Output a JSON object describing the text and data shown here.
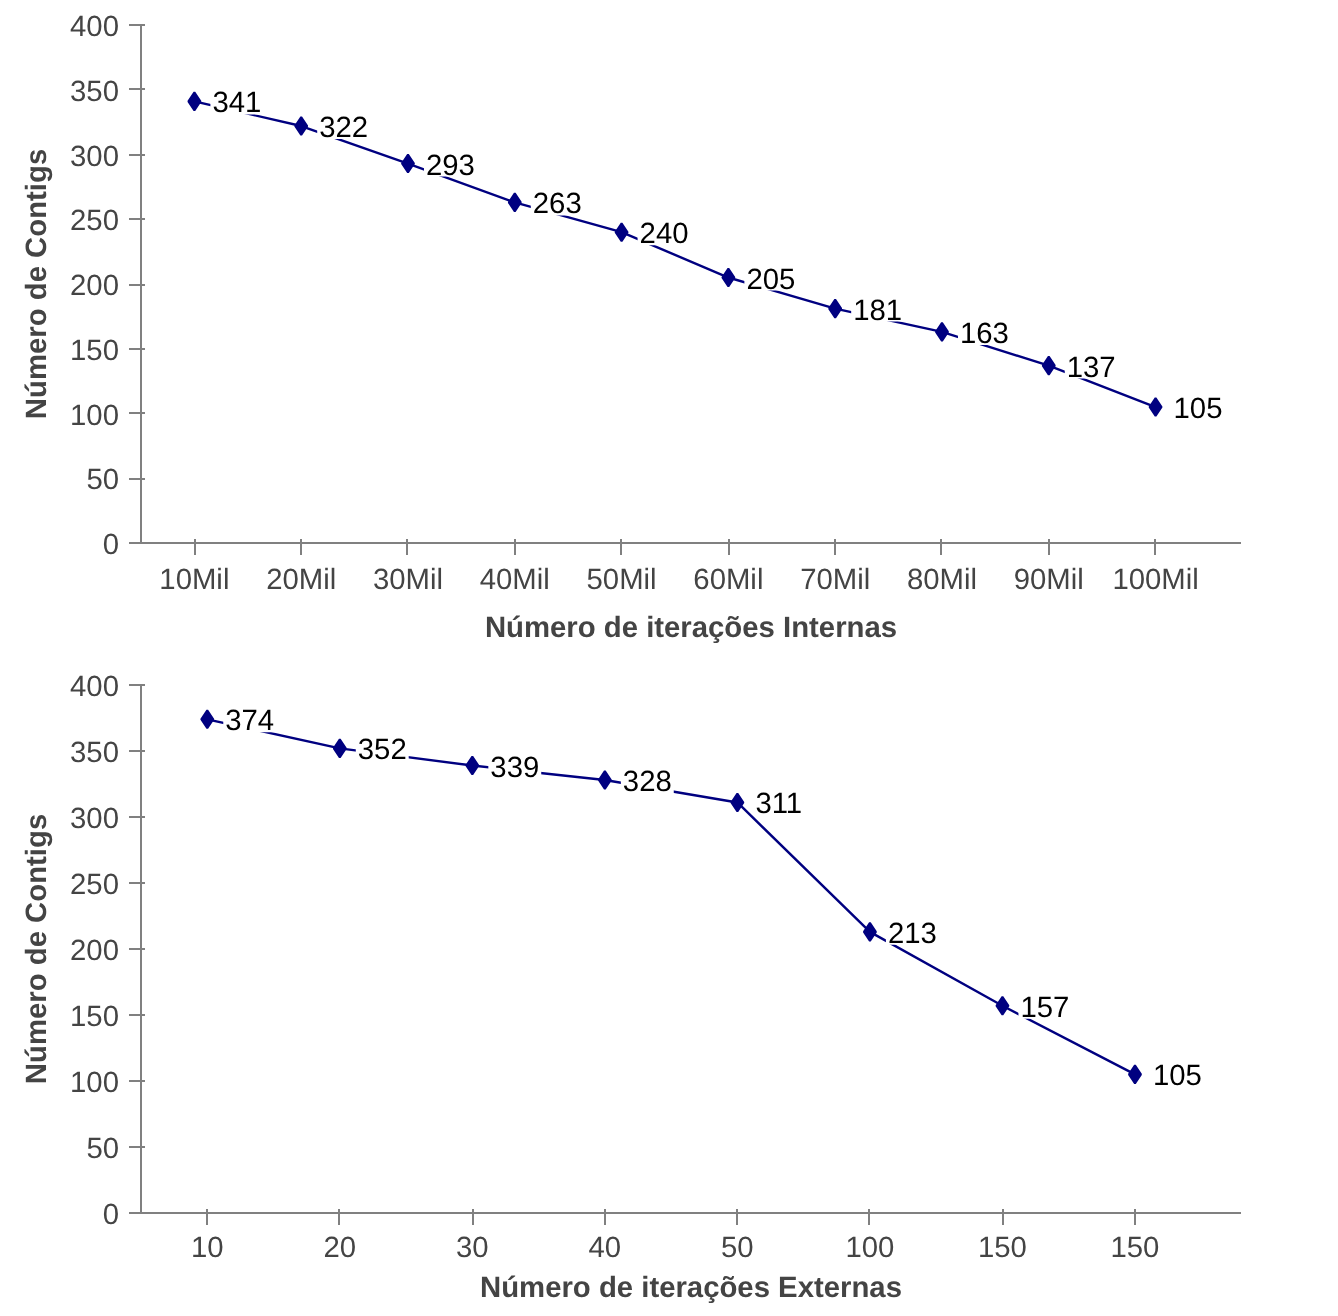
{
  "chart_data": [
    {
      "type": "line",
      "categories": [
        "10Mil",
        "20Mil",
        "30Mil",
        "40Mil",
        "50Mil",
        "60Mil",
        "70Mil",
        "80Mil",
        "90Mil",
        "100Mil"
      ],
      "series": [
        {
          "color": "#000080",
          "values": [
            341,
            322,
            293,
            263,
            240,
            205,
            181,
            163,
            137,
            105
          ]
        }
      ],
      "xlabel": "Número de iterações Internas",
      "ylabel": "Número de Contigs",
      "ylim": [
        0,
        400
      ],
      "yticks": [
        0,
        50,
        100,
        150,
        200,
        250,
        300,
        350,
        400
      ],
      "data_labels": true,
      "marker": "diamond",
      "line_style": "solid"
    },
    {
      "type": "line",
      "categories": [
        "10",
        "20",
        "30",
        "40",
        "50",
        "100",
        "150",
        "150"
      ],
      "series": [
        {
          "color": "#000080",
          "values": [
            374,
            352,
            339,
            328,
            311,
            213,
            157,
            105
          ]
        }
      ],
      "xlabel": "Número de iterações Externas",
      "ylabel": "Número de Contigs",
      "ylim": [
        0,
        400
      ],
      "yticks": [
        0,
        50,
        100,
        150,
        200,
        250,
        300,
        350,
        400
      ],
      "data_labels": true,
      "marker": "diamond",
      "line_style": "solid"
    }
  ]
}
